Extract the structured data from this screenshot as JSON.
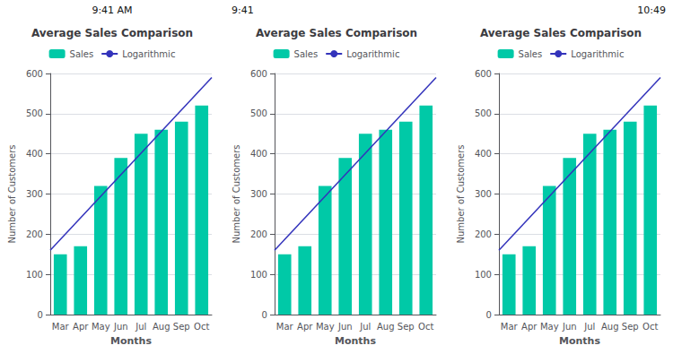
{
  "chart_data": [
    {
      "type": "bar",
      "title": "Average Sales Comparison",
      "annotation": "9:41 AM",
      "xlabel": "Months",
      "ylabel": "Number of Customers",
      "categories": [
        "Mar",
        "Apr",
        "May",
        "Jun",
        "Jul",
        "Aug",
        "Sep",
        "Oct"
      ],
      "series": [
        {
          "name": "Sales",
          "type": "bar",
          "color": "#00C9A7",
          "values": [
            150,
            170,
            320,
            390,
            450,
            460,
            480,
            520
          ]
        }
      ],
      "trendline": {
        "name": "Logarithmic",
        "color": "#3333BB",
        "start": 160,
        "end": 590
      },
      "ylim": [
        0,
        600
      ],
      "yticks": [
        0,
        100,
        200,
        300,
        400,
        500,
        600
      ],
      "grid": true,
      "legend": "top"
    },
    {
      "type": "bar",
      "title": "Average Sales Comparison",
      "annotation": "9:41",
      "xlabel": "Months",
      "ylabel": "Number of Customers",
      "categories": [
        "Mar",
        "Apr",
        "May",
        "Jun",
        "Jul",
        "Aug",
        "Sep",
        "Oct"
      ],
      "series": [
        {
          "name": "Sales",
          "type": "bar",
          "color": "#00C9A7",
          "values": [
            150,
            170,
            320,
            390,
            450,
            460,
            480,
            520
          ]
        }
      ],
      "trendline": {
        "name": "Logarithmic",
        "color": "#3333BB",
        "start": 160,
        "end": 590
      },
      "ylim": [
        0,
        600
      ],
      "yticks": [
        0,
        100,
        200,
        300,
        400,
        500,
        600
      ],
      "grid": true,
      "legend": "top"
    },
    {
      "type": "bar",
      "title": "Average Sales Comparison",
      "annotation": "10:49",
      "xlabel": "Months",
      "ylabel": "Number of Customers",
      "categories": [
        "Mar",
        "Apr",
        "May",
        "Jun",
        "Jul",
        "Aug",
        "Sep",
        "Oct"
      ],
      "series": [
        {
          "name": "Sales",
          "type": "bar",
          "color": "#00C9A7",
          "values": [
            150,
            170,
            320,
            390,
            450,
            460,
            480,
            520
          ]
        }
      ],
      "trendline": {
        "name": "Logarithmic",
        "color": "#3333BB",
        "start": 160,
        "end": 590
      },
      "ylim": [
        0,
        600
      ],
      "yticks": [
        0,
        100,
        200,
        300,
        400,
        500,
        600
      ],
      "grid": true,
      "legend": "top"
    }
  ]
}
